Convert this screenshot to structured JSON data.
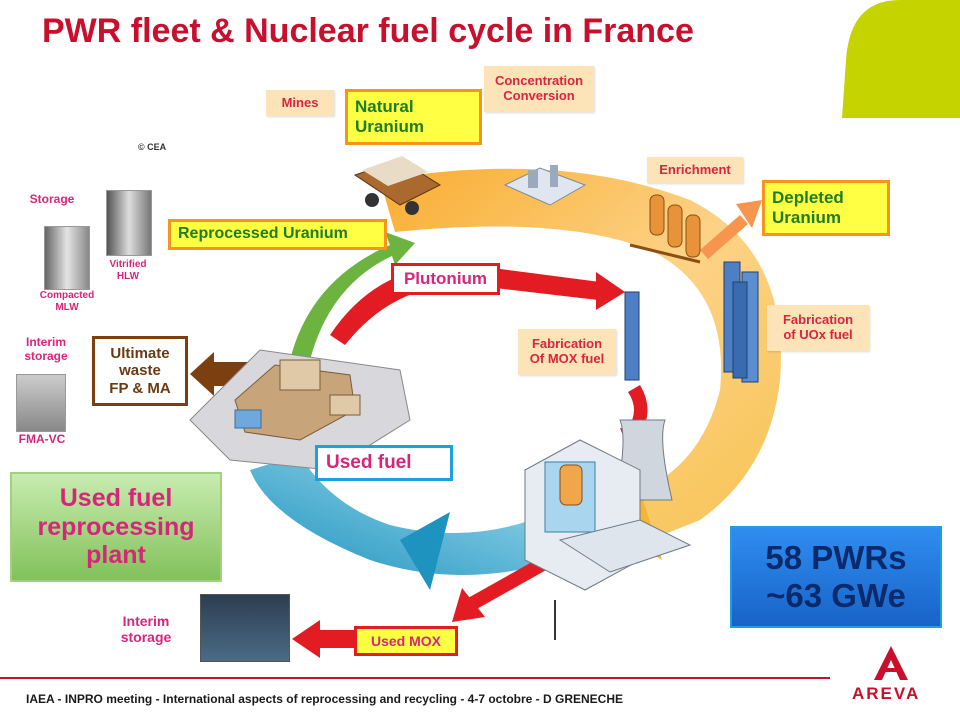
{
  "title": "PWR fleet & Nuclear fuel cycle in France",
  "copyright": "© CEA",
  "labels": {
    "mines": "Mines",
    "natural_uranium": [
      "Natural",
      "Uranium"
    ],
    "concentration": [
      "Concentration",
      "Conversion"
    ],
    "enrichment": "Enrichment",
    "depleted_uranium": [
      "Depleted",
      "Uranium"
    ],
    "reprocessed_uranium": "Reprocessed Uranium",
    "plutonium": "Plutonium",
    "fabrication_mox": [
      "Fabrication",
      "Of MOX fuel"
    ],
    "fabrication_uox": [
      "Fabrication",
      "of UOx fuel"
    ],
    "ultimate_waste": [
      "Ultimate",
      "waste",
      "FP & MA"
    ],
    "used_fuel": "Used fuel",
    "used_fuel_plant": [
      "Used fuel",
      "reprocessing",
      "plant"
    ],
    "pwr_fleet": [
      "58 PWRs",
      "~63 GWe"
    ],
    "used_mox": "Used MOX",
    "interim_storage_bottom": [
      "Interim",
      "storage"
    ],
    "storage": "Storage",
    "vitrified_hlw": [
      "Vitrified",
      "HLW"
    ],
    "compacted_mlw": [
      "Compacted",
      "MLW"
    ],
    "interim_storage_left": [
      "Interim",
      "storage"
    ],
    "fma_vc": "FMA-VC"
  },
  "footer": "IAEA - INPRO meeting - International aspects of reprocessing and recycling - 4-7 octobre - D GRENECHE",
  "brand": "AREVA",
  "colors": {
    "title_red": "#c8102e",
    "accent_green": "#c5d300",
    "pink_text": "#d7267a",
    "cycle_orange": "#f7b23b",
    "cycle_blue": "#2aa3c9",
    "return_green": "#6cb33f",
    "plutonium_red": "#e31b23",
    "pwr_blue": "#1a73d9"
  }
}
